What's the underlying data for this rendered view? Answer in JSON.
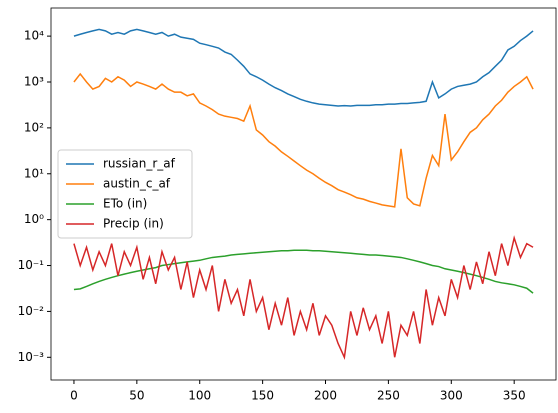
{
  "chart_data": {
    "type": "line",
    "log_y": true,
    "legend": "center left",
    "x": [
      0,
      5,
      10,
      15,
      20,
      25,
      30,
      35,
      40,
      45,
      50,
      55,
      60,
      65,
      70,
      75,
      80,
      85,
      90,
      95,
      100,
      105,
      110,
      115,
      120,
      125,
      130,
      135,
      140,
      145,
      150,
      155,
      160,
      165,
      170,
      175,
      180,
      185,
      190,
      195,
      200,
      205,
      210,
      215,
      220,
      225,
      230,
      235,
      240,
      245,
      250,
      255,
      260,
      265,
      270,
      275,
      280,
      285,
      290,
      295,
      300,
      305,
      310,
      315,
      320,
      325,
      330,
      335,
      340,
      345,
      350,
      355,
      360,
      365
    ],
    "series": [
      {
        "name": "russian_r_af",
        "color": "#1f77b4",
        "values": [
          10000,
          11000,
          12000,
          13000,
          14000,
          13000,
          11000,
          12000,
          11000,
          13000,
          14000,
          13000,
          12000,
          11000,
          12000,
          10000,
          11000,
          9500,
          9000,
          8500,
          7000,
          6500,
          6000,
          5500,
          4500,
          4000,
          3000,
          2200,
          1500,
          1300,
          1100,
          900,
          750,
          650,
          550,
          480,
          420,
          380,
          350,
          330,
          320,
          310,
          300,
          305,
          300,
          310,
          310,
          310,
          320,
          320,
          330,
          330,
          340,
          340,
          350,
          360,
          380,
          1000,
          450,
          550,
          700,
          800,
          850,
          900,
          1000,
          1300,
          1600,
          2200,
          3000,
          5000,
          6000,
          8000,
          10000,
          13000
        ]
      },
      {
        "name": "austin_c_af",
        "color": "#ff7f0e",
        "values": [
          1000,
          1500,
          1000,
          700,
          800,
          1200,
          1000,
          1300,
          1100,
          800,
          1000,
          900,
          800,
          700,
          900,
          700,
          600,
          600,
          500,
          550,
          350,
          300,
          250,
          200,
          180,
          170,
          160,
          140,
          300,
          90,
          70,
          50,
          40,
          30,
          24,
          19,
          15,
          12,
          10,
          8,
          6.5,
          5.5,
          4.5,
          4,
          3.5,
          3,
          2.8,
          2.5,
          2.3,
          2.1,
          2,
          1.9,
          35,
          3,
          2.2,
          2,
          8,
          25,
          15,
          200,
          20,
          30,
          50,
          80,
          100,
          150,
          200,
          300,
          400,
          600,
          800,
          1000,
          1300,
          700
        ]
      },
      {
        "name": "ETo (in)",
        "color": "#2ca02c",
        "values": [
          0.03,
          0.031,
          0.035,
          0.04,
          0.045,
          0.05,
          0.055,
          0.06,
          0.065,
          0.07,
          0.075,
          0.08,
          0.085,
          0.09,
          0.1,
          0.105,
          0.11,
          0.115,
          0.12,
          0.125,
          0.13,
          0.14,
          0.15,
          0.155,
          0.16,
          0.17,
          0.175,
          0.18,
          0.185,
          0.19,
          0.195,
          0.2,
          0.205,
          0.21,
          0.21,
          0.215,
          0.215,
          0.215,
          0.21,
          0.21,
          0.205,
          0.2,
          0.195,
          0.19,
          0.185,
          0.18,
          0.175,
          0.17,
          0.17,
          0.165,
          0.16,
          0.155,
          0.15,
          0.14,
          0.13,
          0.12,
          0.11,
          0.1,
          0.095,
          0.085,
          0.08,
          0.075,
          0.07,
          0.065,
          0.06,
          0.055,
          0.05,
          0.045,
          0.042,
          0.04,
          0.038,
          0.035,
          0.032,
          0.025
        ]
      },
      {
        "name": "Precip (in)",
        "color": "#d62728",
        "values": [
          0.3,
          0.1,
          0.25,
          0.08,
          0.2,
          0.1,
          0.3,
          0.06,
          0.2,
          0.1,
          0.25,
          0.05,
          0.15,
          0.04,
          0.2,
          0.08,
          0.15,
          0.03,
          0.12,
          0.02,
          0.08,
          0.03,
          0.1,
          0.01,
          0.05,
          0.015,
          0.03,
          0.008,
          0.05,
          0.01,
          0.02,
          0.004,
          0.015,
          0.005,
          0.02,
          0.003,
          0.01,
          0.004,
          0.015,
          0.003,
          0.008,
          0.005,
          0.002,
          0.001,
          0.01,
          0.003,
          0.012,
          0.004,
          0.008,
          0.002,
          0.01,
          0.001,
          0.005,
          0.003,
          0.01,
          0.002,
          0.03,
          0.005,
          0.02,
          0.008,
          0.05,
          0.02,
          0.1,
          0.03,
          0.12,
          0.04,
          0.2,
          0.06,
          0.3,
          0.1,
          0.4,
          0.15,
          0.3,
          0.25
        ]
      }
    ],
    "xlim": [
      -18.25,
      383.25
    ],
    "xticks": [
      0,
      50,
      100,
      150,
      200,
      250,
      300,
      350
    ],
    "ylim": [
      0.00032,
      41000
    ],
    "yticks": [
      {
        "value": 0.001,
        "label": "10⁻³"
      },
      {
        "value": 0.01,
        "label": "10⁻²"
      },
      {
        "value": 0.1,
        "label": "10⁻¹"
      },
      {
        "value": 1,
        "label": "10⁰"
      },
      {
        "value": 10,
        "label": "10¹"
      },
      {
        "value": 100,
        "label": "10²"
      },
      {
        "value": 1000,
        "label": "10³"
      },
      {
        "value": 10000,
        "label": "10⁴"
      }
    ]
  }
}
